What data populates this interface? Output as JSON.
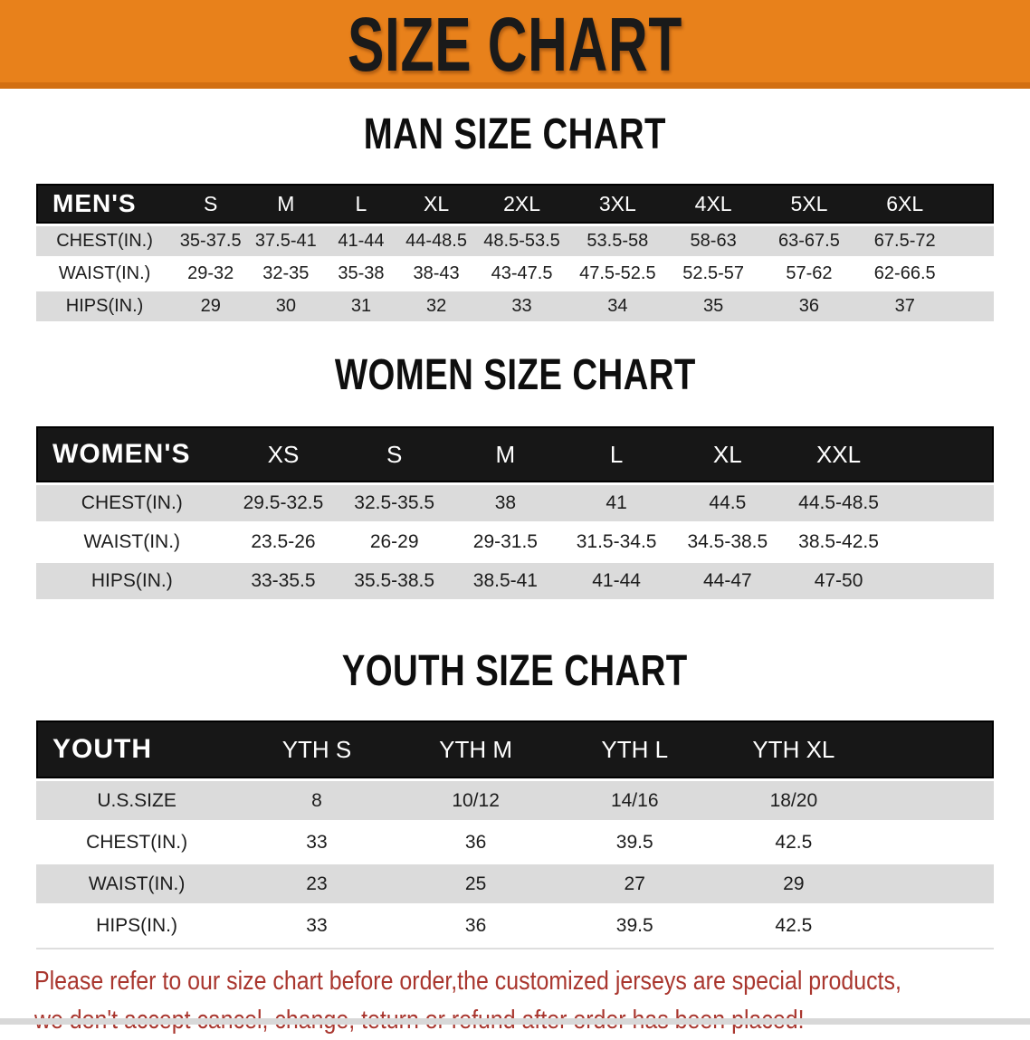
{
  "banner": {
    "title": "SIZE CHART",
    "bg_color": "#e8811b",
    "text_color": "#1a1a1a"
  },
  "colors": {
    "table_header_bg": "#171717",
    "row_stripe": "#dbdbdb",
    "disclaimer_red": "#a9362e"
  },
  "sections": [
    {
      "id": "men",
      "heading": "MAN SIZE CHART",
      "corner_label": "MEN'S",
      "sizes": [
        "S",
        "M",
        "L",
        "XL",
        "2XL",
        "3XL",
        "4XL",
        "5XL",
        "6XL"
      ],
      "rows": [
        {
          "label": "CHEST(IN.)",
          "values": [
            "35-37.5",
            "37.5-41",
            "41-44",
            "44-48.5",
            "48.5-53.5",
            "53.5-58",
            "58-63",
            "63-67.5",
            "67.5-72"
          ]
        },
        {
          "label": "WAIST(IN.)",
          "values": [
            "29-32",
            "32-35",
            "35-38",
            "38-43",
            "43-47.5",
            "47.5-52.5",
            "52.5-57",
            "57-62",
            "62-66.5"
          ]
        },
        {
          "label": "HIPS(IN.)",
          "values": [
            "29",
            "30",
            "31",
            "32",
            "33",
            "34",
            "35",
            "36",
            "37"
          ]
        }
      ]
    },
    {
      "id": "women",
      "heading": "WOMEN SIZE CHART",
      "corner_label": "WOMEN'S",
      "sizes": [
        "XS",
        "S",
        "M",
        "L",
        "XL",
        "XXL"
      ],
      "rows": [
        {
          "label": "CHEST(IN.)",
          "values": [
            "29.5-32.5",
            "32.5-35.5",
            "38",
            "41",
            "44.5",
            "44.5-48.5"
          ]
        },
        {
          "label": "WAIST(IN.)",
          "values": [
            "23.5-26",
            "26-29",
            "29-31.5",
            "31.5-34.5",
            "34.5-38.5",
            "38.5-42.5"
          ]
        },
        {
          "label": "HIPS(IN.)",
          "values": [
            "33-35.5",
            "35.5-38.5",
            "38.5-41",
            "41-44",
            "44-47",
            "47-50"
          ]
        }
      ]
    },
    {
      "id": "youth",
      "heading": "YOUTH SIZE CHART",
      "corner_label": "YOUTH",
      "sizes": [
        "YTH S",
        "YTH M",
        "YTH L",
        "YTH XL"
      ],
      "rows": [
        {
          "label": "U.S.SIZE",
          "values": [
            "8",
            "10/12",
            "14/16",
            "18/20"
          ]
        },
        {
          "label": "CHEST(IN.)",
          "values": [
            "33",
            "36",
            "39.5",
            "42.5"
          ]
        },
        {
          "label": "WAIST(IN.)",
          "values": [
            "23",
            "25",
            "27",
            "29"
          ]
        },
        {
          "label": "HIPS(IN.)",
          "values": [
            "33",
            "36",
            "39.5",
            "42.5"
          ]
        }
      ]
    }
  ],
  "disclaimer": {
    "line1": "Please refer to our size chart before order,the customized jerseys are special products,",
    "line2": "we don't accept cancel, change, teturn or refund after order has been placed!"
  }
}
